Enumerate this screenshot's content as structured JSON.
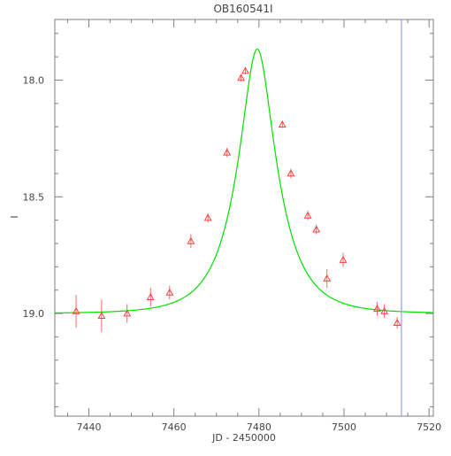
{
  "chart_data": {
    "type": "scatter",
    "title": "OB160541I",
    "xlabel": "JD - 2450000",
    "ylabel": "I",
    "xlim": [
      7432,
      7521
    ],
    "ylim": [
      19.44,
      17.74
    ],
    "y_inverted": true,
    "x_ticks": [
      7440,
      7460,
      7480,
      7500,
      7520
    ],
    "y_ticks": [
      18.0,
      18.5,
      19.0
    ],
    "y_tick_labels": [
      "18.0",
      "18.5",
      "19.0"
    ],
    "grid": false,
    "legend": "none",
    "series": [
      {
        "kind": "points_with_errorbars",
        "marker": "open-triangle",
        "color": "#ff4040",
        "points": [
          {
            "x": 7437.0,
            "y": 18.99,
            "err": 0.07
          },
          {
            "x": 7443.0,
            "y": 19.01,
            "err": 0.07
          },
          {
            "x": 7449.0,
            "y": 19.0,
            "err": 0.04
          },
          {
            "x": 7454.5,
            "y": 18.93,
            "err": 0.04
          },
          {
            "x": 7459.0,
            "y": 18.91,
            "err": 0.03
          },
          {
            "x": 7464.0,
            "y": 18.69,
            "err": 0.03
          },
          {
            "x": 7468.0,
            "y": 18.59,
            "err": 0.02
          },
          {
            "x": 7472.5,
            "y": 18.31,
            "err": 0.02
          },
          {
            "x": 7475.8,
            "y": 17.99,
            "err": 0.015
          },
          {
            "x": 7476.8,
            "y": 17.96,
            "err": 0.015
          },
          {
            "x": 7485.5,
            "y": 18.19,
            "err": 0.015
          },
          {
            "x": 7487.5,
            "y": 18.4,
            "err": 0.02
          },
          {
            "x": 7491.5,
            "y": 18.58,
            "err": 0.02
          },
          {
            "x": 7493.5,
            "y": 18.64,
            "err": 0.02
          },
          {
            "x": 7496.0,
            "y": 18.85,
            "err": 0.04
          },
          {
            "x": 7499.8,
            "y": 18.77,
            "err": 0.03
          },
          {
            "x": 7507.8,
            "y": 18.98,
            "err": 0.03
          },
          {
            "x": 7509.5,
            "y": 18.99,
            "err": 0.03
          },
          {
            "x": 7512.5,
            "y": 19.04,
            "err": 0.025
          }
        ]
      },
      {
        "kind": "model_curve",
        "color": "#00e000",
        "model": {
          "t0": 7479.6,
          "tE": 9.0,
          "u0": 0.37,
          "i_base": 19.0
        }
      }
    ],
    "vertical_line": {
      "x": 7513.5,
      "color": "#9a9ae8"
    }
  }
}
